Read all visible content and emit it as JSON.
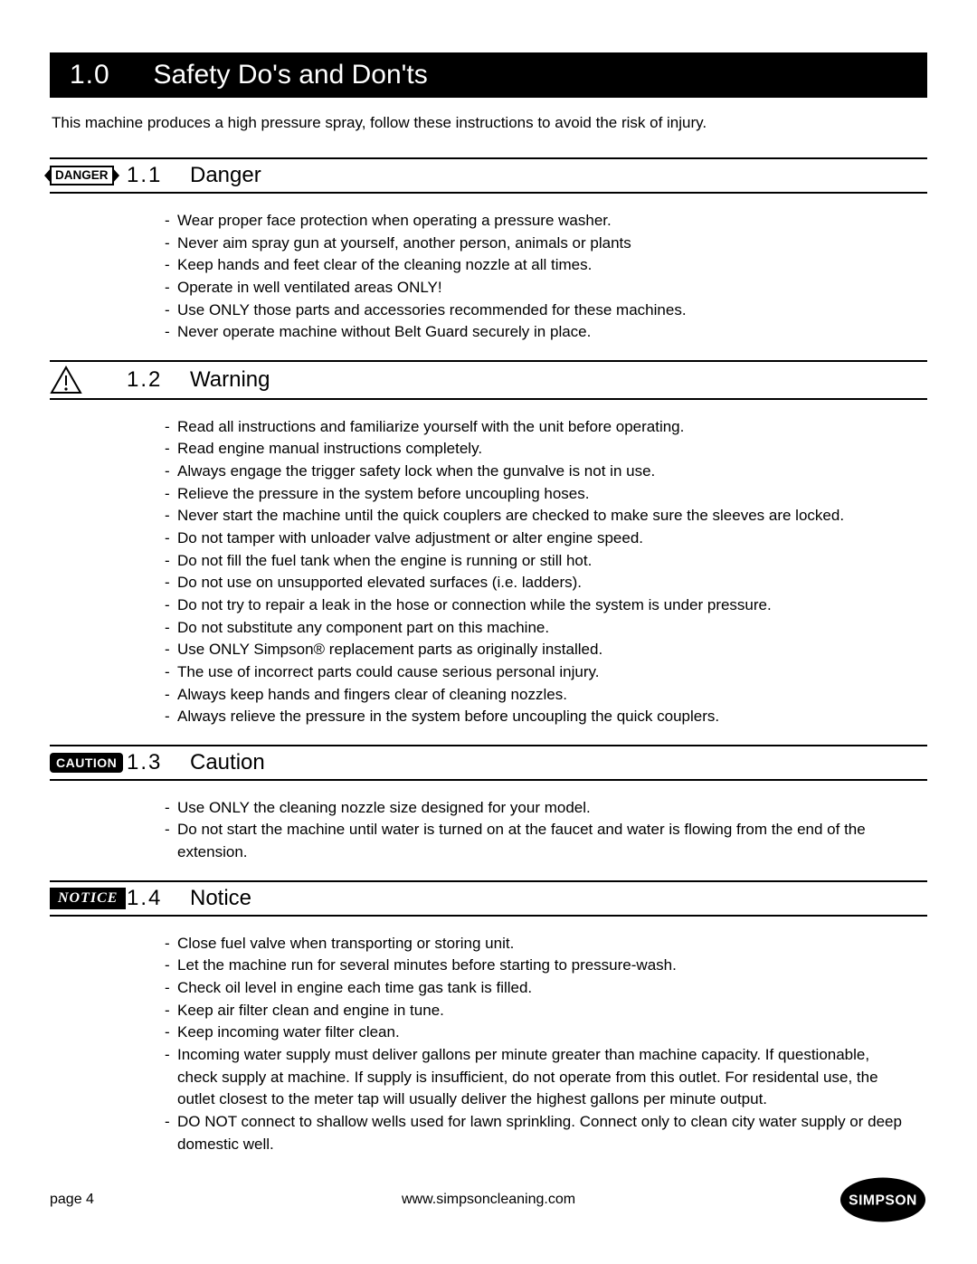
{
  "header": {
    "num": "1.0",
    "title": "Safety Do's and Don'ts"
  },
  "intro": "This machine produces a high pressure spray, follow these instructions to avoid the risk of injury.",
  "sections": [
    {
      "badge_type": "danger",
      "badge_text": "DANGER",
      "num": "1.1",
      "title": "Danger",
      "items": [
        "Wear proper face protection when operating a pressure washer.",
        "Never aim spray gun at yourself, another person, animals or plants",
        "Keep hands and feet clear of the cleaning nozzle at all times.",
        "Operate in well ventilated areas ONLY!",
        "Use ONLY those parts and accessories recommended for these machines.",
        "Never operate machine without Belt Guard securely in place."
      ]
    },
    {
      "badge_type": "warning",
      "num": "1.2",
      "title": "Warning",
      "items": [
        "Read all instructions and familiarize yourself with the unit before operating.",
        "Read engine manual instructions completely.",
        "Always engage the trigger safety lock when the gunvalve is not in use.",
        "Relieve the pressure in the system before uncoupling hoses.",
        "Never start the machine until the quick couplers are checked to make sure the sleeves are locked.",
        "Do not tamper with unloader valve adjustment or alter engine speed.",
        "Do not fill the fuel tank when the engine is running or still hot.",
        "Do not use on unsupported elevated surfaces (i.e. ladders).",
        "Do not try to repair a leak in the hose or connection while the system is under pressure.",
        "Do not substitute any component part on this machine.",
        "Use ONLY Simpson® replacement parts as originally installed.",
        "The use of incorrect parts could cause serious personal injury.",
        "Always keep hands and fingers clear of cleaning nozzles.",
        "Always relieve the pressure in the system before uncoupling the quick couplers."
      ]
    },
    {
      "badge_type": "caution",
      "badge_text": "CAUTION",
      "num": "1.3",
      "title": "Caution",
      "items": [
        "Use ONLY the cleaning nozzle size designed for your model.",
        "Do not start the machine until water is turned on at the faucet and water is flowing from the end of the extension."
      ]
    },
    {
      "badge_type": "notice",
      "badge_text": "NOTICE",
      "num": "1.4",
      "title": "Notice",
      "items": [
        "Close fuel valve when transporting or storing unit.",
        "Let the machine run for several minutes before starting to pressure-wash.",
        "Check oil level in engine each time gas tank is filled.",
        "Keep air filter clean and engine in tune.",
        "Keep incoming water filter clean.",
        "Incoming water supply must deliver gallons per minute greater than machine capacity. If questionable, check supply at machine. If supply is insufficient, do not operate from this outlet. For residental use, the outlet closest to the meter tap will usually deliver the highest gallons per minute output.",
        "DO NOT connect to shallow wells used for lawn sprinkling. Connect only to clean city water supply or deep domestic well."
      ]
    }
  ],
  "footer": {
    "page_label": "page 4",
    "url": "www.simpsoncleaning.com",
    "logo_text": "SIMPSON"
  },
  "colors": {
    "text": "#000000",
    "bg": "#ffffff",
    "header_bg": "#000000"
  }
}
